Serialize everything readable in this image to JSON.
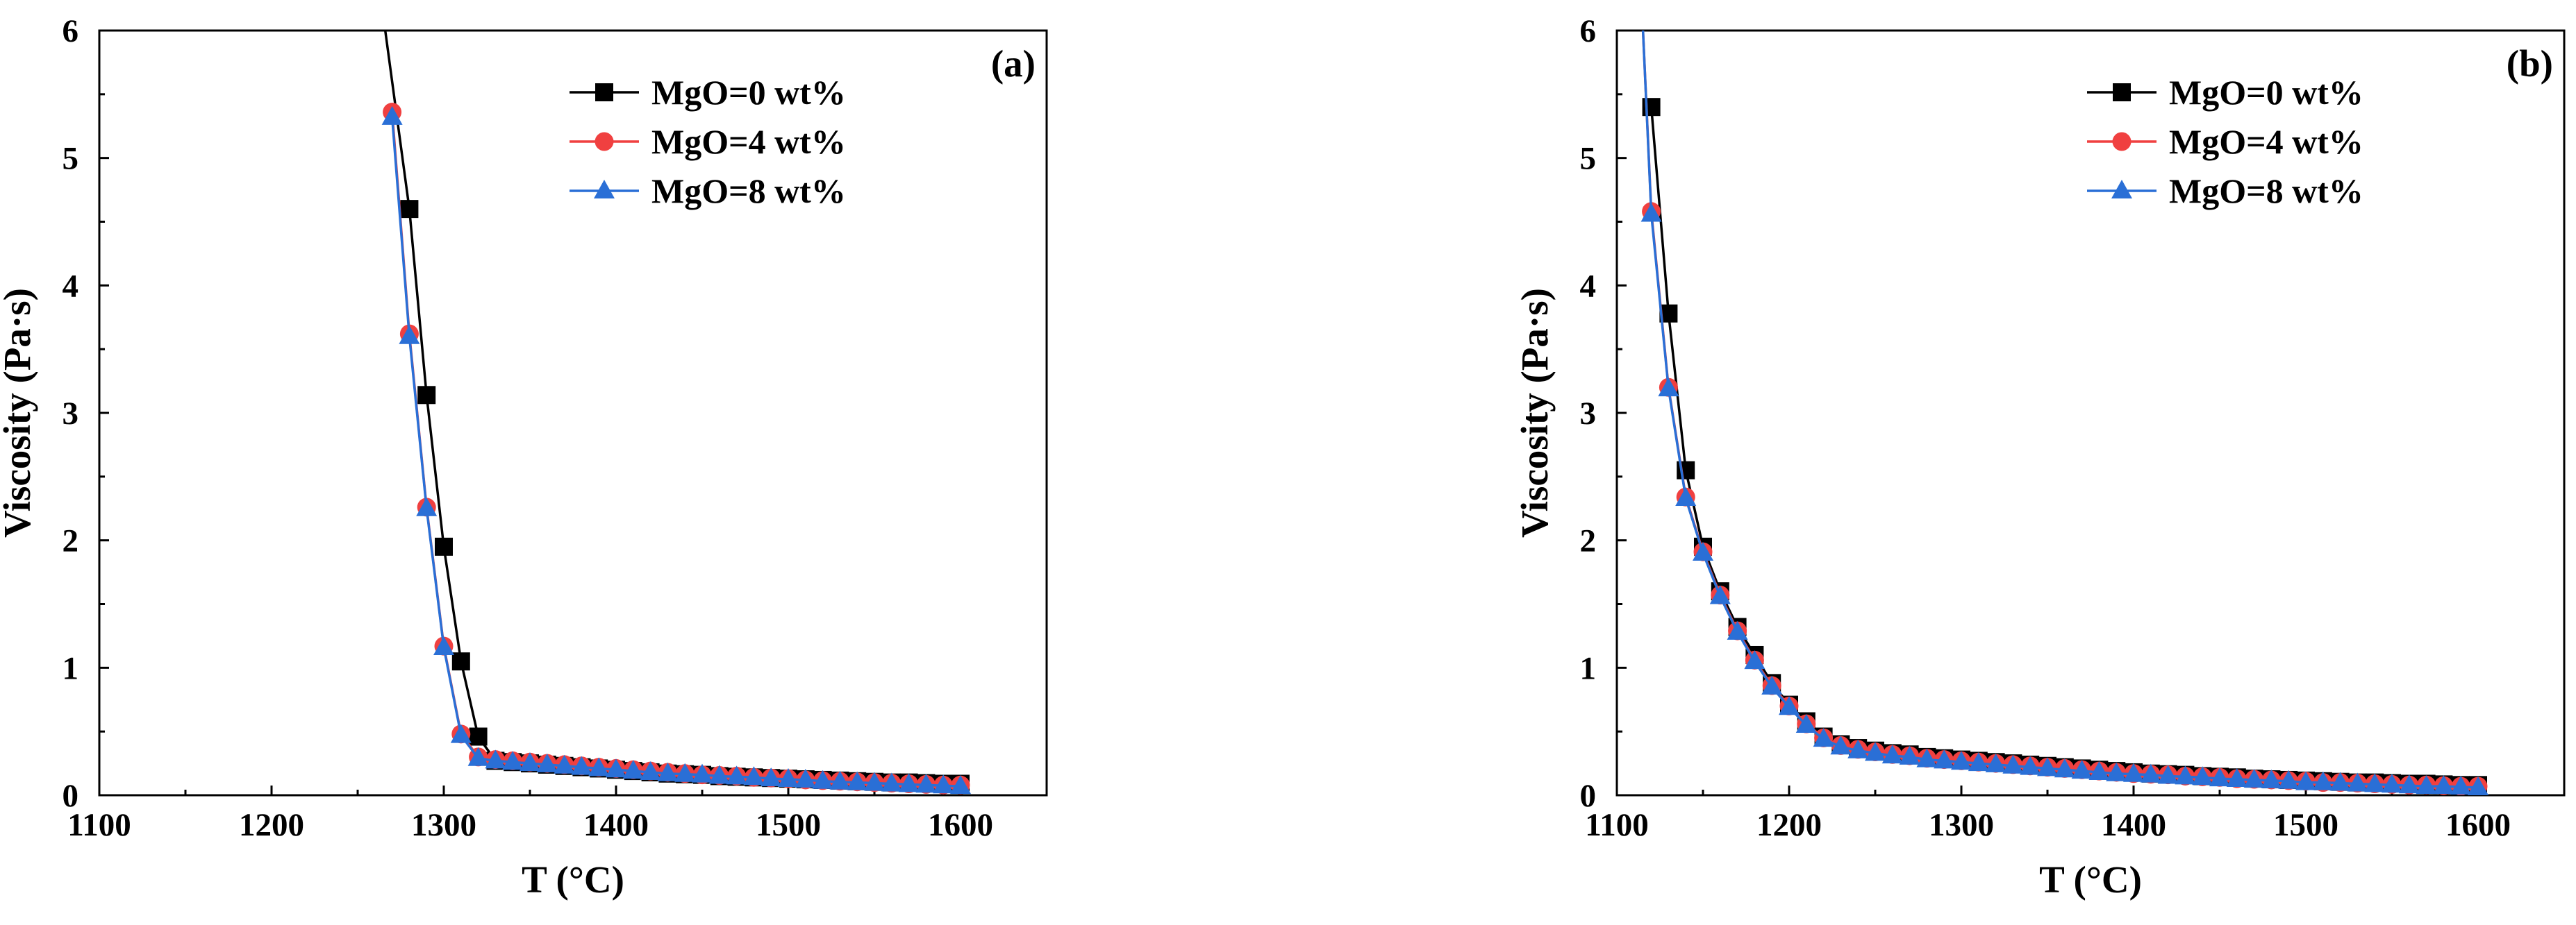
{
  "figure": {
    "panels": [
      {
        "tag": "(a)",
        "xlabel": "T (°C)",
        "ylabel": "Viscosity (Pa·s)",
        "xlim": [
          1100,
          1650
        ],
        "ylim": [
          0,
          6
        ],
        "xticks": [
          1100,
          1200,
          1300,
          1400,
          1500,
          1600
        ],
        "yticks": [
          0,
          1,
          2,
          3,
          4,
          5,
          6
        ]
      },
      {
        "tag": "(b)",
        "xlabel": "T (°C)",
        "ylabel": "Viscosity (Pa·s)",
        "xlim": [
          1100,
          1650
        ],
        "ylim": [
          0,
          6
        ],
        "xticks": [
          1100,
          1200,
          1300,
          1400,
          1500,
          1600
        ],
        "yticks": [
          0,
          1,
          2,
          3,
          4,
          5,
          6
        ]
      }
    ]
  },
  "chart_data": [
    {
      "type": "line",
      "title": "(a)",
      "xlabel": "T (°C)",
      "ylabel": "Viscosity (Pa·s)",
      "xlim": [
        1100,
        1650
      ],
      "ylim": [
        0,
        6
      ],
      "legend_position": "top-right",
      "series": [
        {
          "name": "MgO=0 wt%",
          "color": "#000000",
          "marker": "square",
          "curve_start": {
            "x": 1262,
            "y": 6.4
          },
          "x": [
            1280,
            1290,
            1300,
            1310,
            1320,
            1330,
            1340,
            1350,
            1360,
            1370,
            1380,
            1390,
            1400,
            1410,
            1420,
            1430,
            1440,
            1450,
            1460,
            1470,
            1480,
            1490,
            1500,
            1510,
            1520,
            1530,
            1540,
            1550,
            1560,
            1570,
            1580,
            1590,
            1600
          ],
          "y": [
            4.6,
            3.14,
            1.95,
            1.05,
            0.46,
            0.27,
            0.26,
            0.25,
            0.24,
            0.23,
            0.22,
            0.21,
            0.2,
            0.19,
            0.18,
            0.17,
            0.165,
            0.16,
            0.15,
            0.145,
            0.14,
            0.135,
            0.13,
            0.125,
            0.12,
            0.115,
            0.11,
            0.105,
            0.1,
            0.1,
            0.095,
            0.09,
            0.09
          ]
        },
        {
          "name": "MgO=4 wt%",
          "color": "#f04040",
          "marker": "circle",
          "x": [
            1270,
            1280,
            1290,
            1300,
            1310,
            1320,
            1330,
            1340,
            1350,
            1360,
            1370,
            1380,
            1390,
            1400,
            1410,
            1420,
            1430,
            1440,
            1450,
            1460,
            1470,
            1480,
            1490,
            1500,
            1510,
            1520,
            1530,
            1540,
            1550,
            1560,
            1570,
            1580,
            1590,
            1600
          ],
          "y": [
            5.36,
            3.62,
            2.26,
            1.17,
            0.48,
            0.3,
            0.28,
            0.27,
            0.26,
            0.25,
            0.24,
            0.23,
            0.22,
            0.21,
            0.2,
            0.19,
            0.18,
            0.17,
            0.16,
            0.155,
            0.15,
            0.14,
            0.135,
            0.13,
            0.12,
            0.115,
            0.11,
            0.105,
            0.1,
            0.095,
            0.09,
            0.085,
            0.08,
            0.08
          ]
        },
        {
          "name": "MgO=8 wt%",
          "color": "#2a6fd6",
          "marker": "triangle",
          "x": [
            1270,
            1280,
            1290,
            1300,
            1310,
            1320,
            1330,
            1340,
            1350,
            1360,
            1370,
            1380,
            1390,
            1400,
            1410,
            1420,
            1430,
            1440,
            1450,
            1460,
            1470,
            1480,
            1490,
            1500,
            1510,
            1520,
            1530,
            1540,
            1550,
            1560,
            1570,
            1580,
            1590,
            1600
          ],
          "y": [
            5.32,
            3.6,
            2.25,
            1.16,
            0.47,
            0.29,
            0.27,
            0.26,
            0.25,
            0.24,
            0.23,
            0.22,
            0.21,
            0.2,
            0.19,
            0.18,
            0.17,
            0.165,
            0.16,
            0.15,
            0.145,
            0.14,
            0.13,
            0.125,
            0.12,
            0.11,
            0.105,
            0.1,
            0.095,
            0.09,
            0.085,
            0.08,
            0.075,
            0.07
          ]
        }
      ]
    },
    {
      "type": "line",
      "title": "(b)",
      "xlabel": "T (°C)",
      "ylabel": "Viscosity (Pa·s)",
      "xlim": [
        1100,
        1650
      ],
      "ylim": [
        0,
        6
      ],
      "legend_position": "top-right",
      "series": [
        {
          "name": "MgO=0 wt%",
          "color": "#000000",
          "marker": "square",
          "x": [
            1120,
            1130,
            1140,
            1150,
            1160,
            1170,
            1180,
            1190,
            1200,
            1210,
            1220,
            1230,
            1240,
            1250,
            1260,
            1270,
            1280,
            1290,
            1300,
            1310,
            1320,
            1330,
            1340,
            1350,
            1360,
            1370,
            1380,
            1390,
            1400,
            1410,
            1420,
            1430,
            1440,
            1450,
            1460,
            1470,
            1480,
            1490,
            1500,
            1510,
            1520,
            1530,
            1540,
            1550,
            1560,
            1570,
            1580,
            1590,
            1600
          ],
          "y": [
            5.4,
            3.78,
            2.55,
            1.95,
            1.6,
            1.32,
            1.1,
            0.88,
            0.71,
            0.58,
            0.46,
            0.4,
            0.37,
            0.35,
            0.33,
            0.32,
            0.3,
            0.29,
            0.28,
            0.27,
            0.26,
            0.25,
            0.24,
            0.23,
            0.22,
            0.21,
            0.2,
            0.19,
            0.18,
            0.17,
            0.165,
            0.16,
            0.15,
            0.145,
            0.14,
            0.13,
            0.125,
            0.12,
            0.115,
            0.11,
            0.105,
            0.1,
            0.1,
            0.095,
            0.09,
            0.09,
            0.085,
            0.08,
            0.08
          ]
        },
        {
          "name": "MgO=4 wt%",
          "color": "#f04040",
          "marker": "circle",
          "curve_start": {
            "x": 1115,
            "y": 6.05
          },
          "x": [
            1120,
            1130,
            1140,
            1150,
            1160,
            1170,
            1180,
            1190,
            1200,
            1210,
            1220,
            1230,
            1240,
            1250,
            1260,
            1270,
            1280,
            1290,
            1300,
            1310,
            1320,
            1330,
            1340,
            1350,
            1360,
            1370,
            1380,
            1390,
            1400,
            1410,
            1420,
            1430,
            1440,
            1450,
            1460,
            1470,
            1480,
            1490,
            1500,
            1510,
            1520,
            1530,
            1540,
            1550,
            1560,
            1570,
            1580,
            1590,
            1600
          ],
          "y": [
            4.58,
            3.2,
            2.34,
            1.91,
            1.57,
            1.29,
            1.06,
            0.86,
            0.7,
            0.56,
            0.45,
            0.39,
            0.36,
            0.34,
            0.32,
            0.31,
            0.29,
            0.28,
            0.27,
            0.26,
            0.25,
            0.24,
            0.23,
            0.22,
            0.21,
            0.2,
            0.19,
            0.18,
            0.17,
            0.165,
            0.16,
            0.15,
            0.145,
            0.14,
            0.13,
            0.125,
            0.12,
            0.115,
            0.11,
            0.1,
            0.1,
            0.095,
            0.09,
            0.085,
            0.08,
            0.08,
            0.075,
            0.07,
            0.07
          ]
        },
        {
          "name": "MgO=8 wt%",
          "color": "#2a6fd6",
          "marker": "triangle",
          "curve_start": {
            "x": 1115,
            "y": 6.05
          },
          "x": [
            1120,
            1130,
            1140,
            1150,
            1160,
            1170,
            1180,
            1190,
            1200,
            1210,
            1220,
            1230,
            1240,
            1250,
            1260,
            1270,
            1280,
            1290,
            1300,
            1310,
            1320,
            1330,
            1340,
            1350,
            1360,
            1370,
            1380,
            1390,
            1400,
            1410,
            1420,
            1430,
            1440,
            1450,
            1460,
            1470,
            1480,
            1490,
            1500,
            1510,
            1520,
            1530,
            1540,
            1550,
            1560,
            1570,
            1580,
            1590,
            1600
          ],
          "y": [
            4.56,
            3.19,
            2.33,
            1.9,
            1.56,
            1.28,
            1.05,
            0.85,
            0.69,
            0.55,
            0.44,
            0.38,
            0.35,
            0.33,
            0.31,
            0.3,
            0.28,
            0.27,
            0.26,
            0.25,
            0.24,
            0.23,
            0.22,
            0.21,
            0.2,
            0.19,
            0.18,
            0.17,
            0.165,
            0.16,
            0.15,
            0.145,
            0.14,
            0.13,
            0.125,
            0.12,
            0.115,
            0.11,
            0.1,
            0.1,
            0.095,
            0.09,
            0.085,
            0.08,
            0.075,
            0.07,
            0.07,
            0.065,
            0.06
          ]
        }
      ]
    }
  ]
}
